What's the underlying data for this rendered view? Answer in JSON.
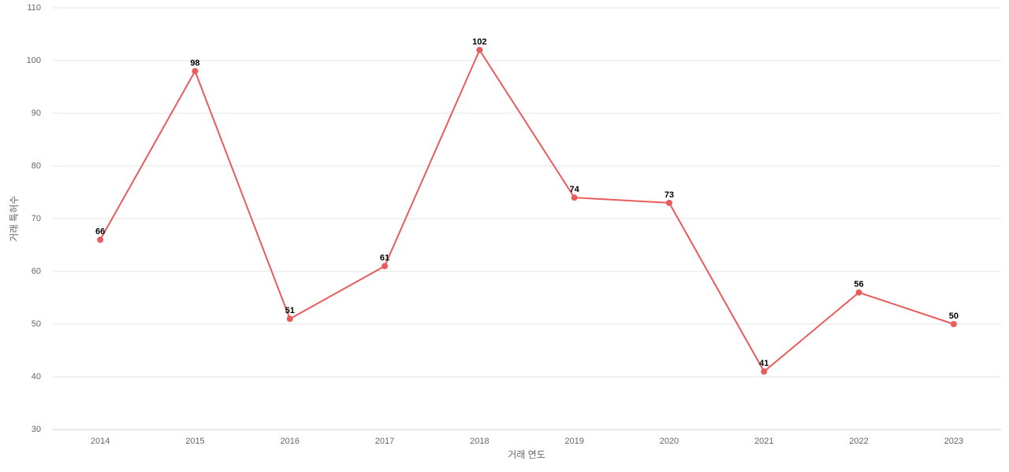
{
  "chart_data": {
    "type": "line",
    "x_label": "거래 연도",
    "y_label": "거래 특허수",
    "categories": [
      "2014",
      "2015",
      "2016",
      "2017",
      "2018",
      "2019",
      "2020",
      "2021",
      "2022",
      "2023"
    ],
    "series": [
      {
        "name": "거래 특허수",
        "color": "#e85c5c",
        "values": [
          66,
          98,
          51,
          61,
          102,
          74,
          73,
          41,
          56,
          50
        ]
      }
    ],
    "ylim": [
      30,
      110
    ],
    "yticks": [
      30,
      40,
      50,
      60,
      70,
      80,
      90,
      100,
      110
    ],
    "grid": true,
    "legend": false
  }
}
